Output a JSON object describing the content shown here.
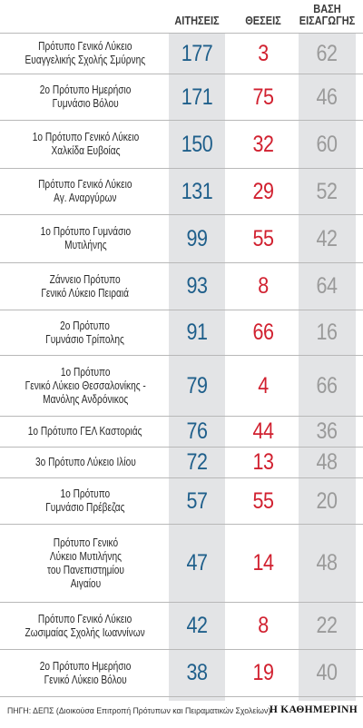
{
  "header": {
    "applications": "ΑΙΤΗΣΕΙΣ",
    "positions": "ΘΕΣΕΙΣ",
    "base_line1": "ΒΑΣΗ",
    "base_line2": "ΕΙΣΑΓΩΓΗΣ"
  },
  "colors": {
    "applications": "#1f5f8b",
    "positions": "#d1202f",
    "base": "#9a9a9a",
    "column_background": "#e3e4e6"
  },
  "chart_data": {
    "type": "table",
    "columns": [
      "ΑΙΤΗΣΕΙΣ",
      "ΘΕΣΕΙΣ",
      "ΒΑΣΗ ΕΙΣΑΓΩΓΗΣ"
    ],
    "rows": [
      {
        "school": [
          "Πρότυπο Γενικό Λύκειο",
          "Ευαγγελικής Σχολής Σμύρνης"
        ],
        "applications": 177,
        "positions": 3,
        "base": 62
      },
      {
        "school": [
          "2ο Πρότυπο Ημερήσιο",
          "Γυμνάσιο Βόλου"
        ],
        "applications": 171,
        "positions": 75,
        "base": 46
      },
      {
        "school": [
          "1ο Πρότυπο Γενικό Λύκειο",
          "Χαλκίδα Ευβοίας"
        ],
        "applications": 150,
        "positions": 32,
        "base": 60
      },
      {
        "school": [
          "Πρότυπο Γενικό Λύκειο",
          "Αγ. Αναργύρων"
        ],
        "applications": 131,
        "positions": 29,
        "base": 52
      },
      {
        "school": [
          "1ο Πρότυπο Γυμνάσιο",
          "Μυτιλήνης"
        ],
        "applications": 99,
        "positions": 55,
        "base": 42
      },
      {
        "school": [
          "Ζάννειο Πρότυπο",
          "Γενικό Λύκειο Πειραιά"
        ],
        "applications": 93,
        "positions": 8,
        "base": 64
      },
      {
        "school": [
          "2ο Πρότυπο",
          "Γυμνάσιο Τρίπολης"
        ],
        "applications": 91,
        "positions": 66,
        "base": 16
      },
      {
        "school": [
          "1ο Πρότυπο",
          "Γενικό Λύκειο Θεσσαλονίκης -",
          "Μανόλης Ανδρόνικος"
        ],
        "applications": 79,
        "positions": 4,
        "base": 66
      },
      {
        "school": [
          "1ο Πρότυπο ΓΕΛ Καστοριάς"
        ],
        "applications": 76,
        "positions": 44,
        "base": 36
      },
      {
        "school": [
          "3ο Πρότυπο Λύκειο Ιλίου"
        ],
        "applications": 72,
        "positions": 13,
        "base": 48
      },
      {
        "school": [
          "1ο Πρότυπο",
          "Γυμνάσιο Πρέβεζας"
        ],
        "applications": 57,
        "positions": 55,
        "base": 20
      },
      {
        "school": [
          "Πρότυπο Γενικό",
          "Λύκειο Μυτιλήνης",
          "του Πανεπιστημίου",
          "Αιγαίου"
        ],
        "applications": 47,
        "positions": 14,
        "base": 48
      },
      {
        "school": [
          "Πρότυπο Γενικό Λύκειο",
          "Ζωσιμαίας Σχολής Ιωαννίνων"
        ],
        "applications": 42,
        "positions": 8,
        "base": 22
      },
      {
        "school": [
          "2ο Πρότυπο Ημερήσιο",
          "Γενικό Λύκειο Βόλου"
        ],
        "applications": 38,
        "positions": 19,
        "base": 40
      }
    ]
  },
  "footer": {
    "source": "ΠΗΓΗ: ΔΕΠΣ (Διοικούσα Επιτροπή Πρότυπων και Πειραματικών Σχολείων)",
    "brand": "Η ΚΑΘΗΜΕΡΙΝΗ"
  }
}
